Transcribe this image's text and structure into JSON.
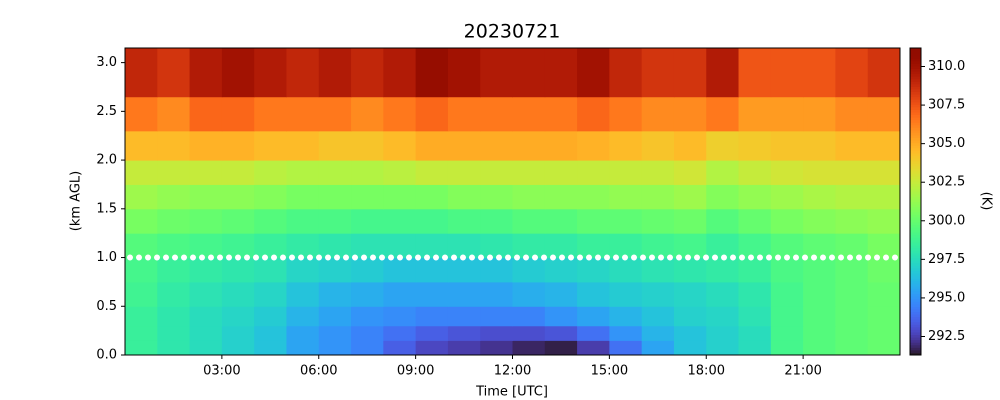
{
  "chart_data": {
    "type": "heatmap",
    "title": "20230721",
    "x_label": "Time [UTC]",
    "y_label": "(km AGL)",
    "colorbar_label": "(K)",
    "x_edges": [
      0,
      1,
      2,
      3,
      4,
      5,
      6,
      7,
      8,
      9,
      10,
      11,
      12,
      13,
      14,
      15,
      16,
      17,
      18,
      19,
      20,
      21,
      22,
      23,
      24
    ],
    "y_edges": [
      0,
      0.15,
      0.3,
      0.5,
      0.75,
      1.0,
      1.25,
      1.5,
      1.75,
      2.0,
      2.3,
      2.65,
      3.15
    ],
    "xlim": [
      0,
      24
    ],
    "ylim": [
      0,
      3.15
    ],
    "clim": [
      291.3,
      311.2
    ],
    "colormap": "turbo",
    "xticks": [
      {
        "value": 3,
        "label": "03:00"
      },
      {
        "value": 6,
        "label": "06:00"
      },
      {
        "value": 9,
        "label": "09:00"
      },
      {
        "value": 12,
        "label": "12:00"
      },
      {
        "value": 15,
        "label": "15:00"
      },
      {
        "value": 18,
        "label": "18:00"
      },
      {
        "value": 21,
        "label": "21:00"
      }
    ],
    "yticks": [
      {
        "value": 0,
        "label": "0.0"
      },
      {
        "value": 0.5,
        "label": "0.5"
      },
      {
        "value": 1,
        "label": "1.0"
      },
      {
        "value": 1.5,
        "label": "1.5"
      },
      {
        "value": 2,
        "label": "2.0"
      },
      {
        "value": 2.5,
        "label": "2.5"
      },
      {
        "value": 3,
        "label": "3.0"
      }
    ],
    "cticks": [
      292.5,
      {
        "value": 295,
        "label": "295.0"
      },
      297.5,
      {
        "value": 300,
        "label": "300.0"
      },
      302.5,
      {
        "value": 305,
        "label": "305.0"
      },
      307.5,
      {
        "value": 310,
        "label": "310.0"
      }
    ],
    "reference_line": {
      "y": 1.0,
      "color": "#ffffff"
    },
    "z": [
      [
        298.5,
        298,
        297.5,
        297,
        296.5,
        295.5,
        295,
        294.5,
        293.5,
        292.8,
        292.5,
        292.2,
        291.8,
        291.6,
        292.5,
        294,
        295.5,
        296.5,
        297,
        297.5,
        299,
        299.5,
        299.8,
        300
      ],
      [
        298.5,
        298,
        297.5,
        297,
        296.5,
        295.5,
        295,
        294.5,
        294,
        293.5,
        293.2,
        293,
        293,
        293.2,
        294,
        295,
        296,
        296.5,
        297,
        297.5,
        299,
        299.5,
        299.8,
        300
      ],
      [
        298.5,
        298,
        297.5,
        297.2,
        296.8,
        296,
        295.5,
        295,
        294.8,
        294.5,
        294.5,
        294.5,
        294.5,
        295,
        295.5,
        296,
        296.5,
        297,
        297.2,
        297.8,
        299,
        299.5,
        299.8,
        300
      ],
      [
        298.8,
        298.2,
        297.8,
        297.5,
        297.2,
        296.5,
        296,
        295.8,
        295.5,
        295.5,
        295.5,
        295.5,
        295.8,
        296,
        296.5,
        296.8,
        297,
        297.2,
        297.5,
        298,
        299,
        299.5,
        299.8,
        300
      ],
      [
        299,
        298.5,
        298.2,
        298,
        297.8,
        297.2,
        297,
        296.8,
        296.5,
        296.5,
        296.5,
        296.5,
        296.8,
        297,
        297.2,
        297.5,
        297.8,
        298,
        298.2,
        298.5,
        299.2,
        299.5,
        299.8,
        300.2
      ],
      [
        299.5,
        299.2,
        299,
        298.8,
        298.5,
        298.2,
        298,
        297.8,
        297.8,
        297.8,
        297.8,
        298,
        298.2,
        298.2,
        298.5,
        298.5,
        298.8,
        299,
        298.5,
        299,
        299.5,
        299.8,
        300,
        300.5
      ],
      [
        300.5,
        300.2,
        300,
        299.8,
        299.5,
        299.2,
        299.2,
        299,
        299,
        299,
        299.2,
        299.2,
        299.5,
        299.5,
        299.8,
        299.8,
        300,
        300.2,
        299.5,
        300,
        300.5,
        300.8,
        301,
        301.2
      ],
      [
        301.5,
        301.2,
        301,
        301,
        300.8,
        300.5,
        300.5,
        300.5,
        300.5,
        300.5,
        300.8,
        300.8,
        301,
        301,
        301,
        301.2,
        301.2,
        301.5,
        300.8,
        301.2,
        301.5,
        301.8,
        302,
        302
      ],
      [
        302.5,
        302.5,
        302.5,
        302.5,
        302.2,
        302,
        302,
        302,
        302.2,
        302.5,
        302.5,
        302.5,
        302.5,
        302.5,
        302.5,
        302.5,
        302.5,
        302.8,
        302,
        302.5,
        302.8,
        303,
        303,
        303
      ],
      [
        304.5,
        304.5,
        304.8,
        304.8,
        304.5,
        304.5,
        304.2,
        304.2,
        304.5,
        305,
        305,
        305,
        305,
        305,
        304.8,
        304.5,
        304.2,
        304.5,
        303.8,
        304,
        304.2,
        304.2,
        304.5,
        304.5
      ],
      [
        306.5,
        306,
        307,
        307,
        306.5,
        306.5,
        306.5,
        306,
        306.5,
        307,
        306.5,
        306.5,
        306.5,
        306.5,
        307,
        306.5,
        306,
        306,
        306.5,
        305.5,
        305.5,
        305.5,
        306,
        306
      ],
      [
        309,
        308.5,
        309.5,
        310,
        309.5,
        309,
        309.5,
        309,
        309.5,
        310.5,
        310,
        309.5,
        309.5,
        309.5,
        310,
        309,
        308.5,
        308.5,
        309.5,
        307.5,
        307.5,
        307.5,
        308,
        308.5
      ]
    ]
  }
}
